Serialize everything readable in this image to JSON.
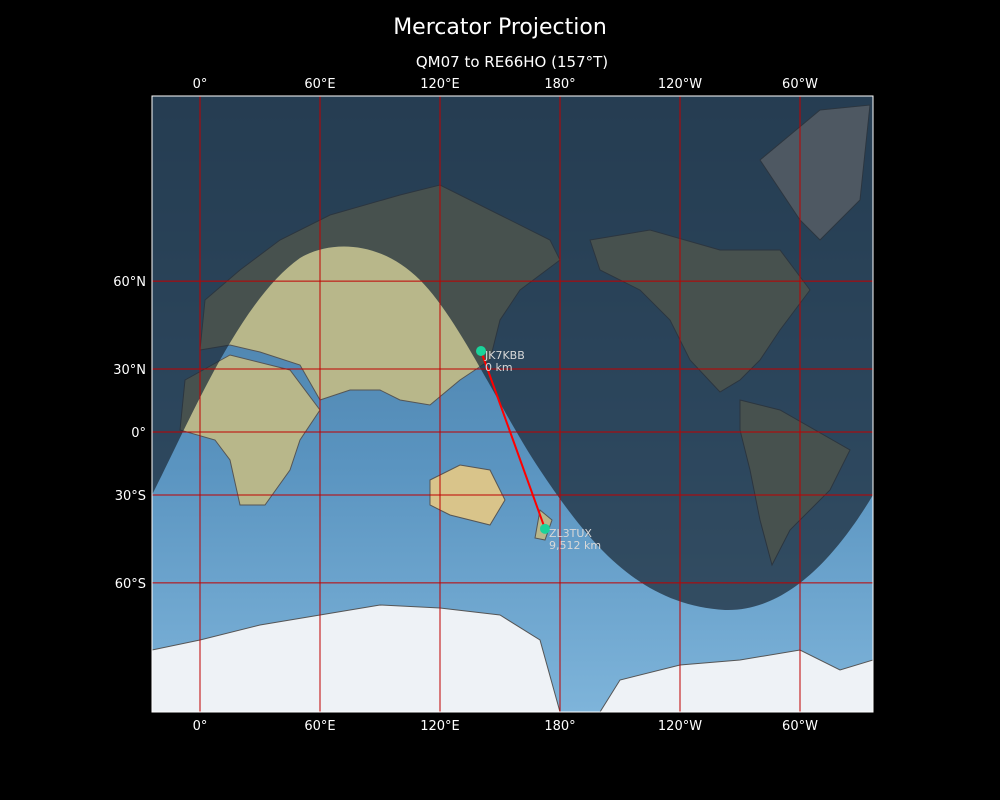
{
  "title": "Mercator Projection",
  "subtitle": "QM07 to RE66HO (157°T)",
  "x_ticks": [
    "0°",
    "60°E",
    "120°E",
    "180°",
    "120°W",
    "60°W"
  ],
  "x_tick_lons": [
    0,
    60,
    120,
    180,
    240,
    300
  ],
  "y_ticks": [
    "60°N",
    "30°N",
    "0°",
    "30°S",
    "60°S"
  ],
  "y_tick_lats": [
    60,
    30,
    0,
    -30,
    -60
  ],
  "lon_range": [
    -24,
    336
  ],
  "stations": [
    {
      "call": "JK7KBB",
      "distance": "0 km",
      "lon": 140.5,
      "lat": 37.5
    },
    {
      "call": "ZL3TUX",
      "distance": "9,512 km",
      "lon": 172.5,
      "lat": -43.5
    }
  ],
  "colors": {
    "path": "#ff0000",
    "marker": "#1ad39a",
    "grid": "#c00000",
    "ocean": "#4f88b3",
    "night": "#1c2a38"
  }
}
